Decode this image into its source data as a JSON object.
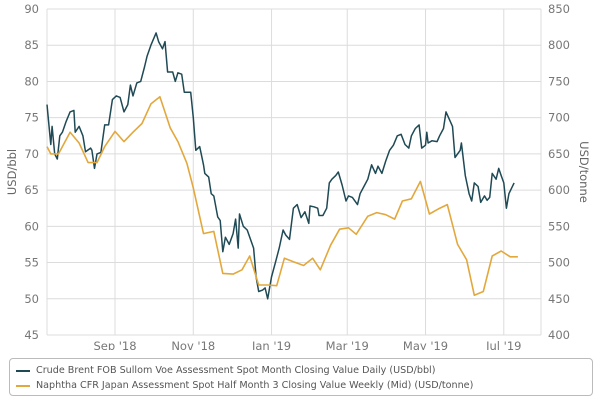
{
  "chart_data": {
    "type": "line",
    "x_unit": "days since 2018-07-10",
    "x_ticks": [
      {
        "day": 53,
        "label": "Sep '18"
      },
      {
        "day": 114,
        "label": "Nov '18"
      },
      {
        "day": 175,
        "label": "Jan '19"
      },
      {
        "day": 234,
        "label": "Mar '19"
      },
      {
        "day": 295,
        "label": "May '19"
      },
      {
        "day": 356,
        "label": "Jul '19"
      }
    ],
    "xlim": [
      0,
      385
    ],
    "y_left": {
      "label": "USD/bbl",
      "lim": [
        45,
        90
      ],
      "ticks": [
        45,
        50,
        55,
        60,
        65,
        70,
        75,
        80,
        85,
        90
      ]
    },
    "y_right": {
      "label": "USD/tonne",
      "lim": [
        400,
        850
      ],
      "ticks": [
        400,
        450,
        500,
        550,
        600,
        650,
        700,
        750,
        800,
        850
      ]
    },
    "grid": true,
    "legend_position": "bottom",
    "series": [
      {
        "name": "Crude Brent FOB Sullom Voe Assessment Spot Month Closing Value Daily (USD/bbl)",
        "axis": "left",
        "color": "#1f4a55",
        "x": [
          0,
          2,
          3,
          4,
          6,
          8,
          10,
          12,
          15,
          18,
          21,
          22,
          25,
          28,
          30,
          34,
          35,
          37,
          39,
          42,
          45,
          48,
          51,
          54,
          57,
          60,
          63,
          65,
          67,
          70,
          73,
          76,
          78,
          81,
          85,
          87,
          90,
          92,
          94,
          98,
          100,
          102,
          105,
          107,
          112,
          114,
          116,
          119,
          122,
          123,
          126,
          128,
          130,
          133,
          135,
          137,
          139,
          142,
          145,
          147,
          149,
          150,
          153,
          156,
          161,
          163,
          165,
          168,
          170,
          172,
          175,
          178,
          181,
          184,
          186,
          189,
          192,
          195,
          198,
          201,
          204,
          205,
          208,
          211,
          212,
          215,
          218,
          220,
          222,
          225,
          227,
          230,
          233,
          235,
          238,
          242,
          244,
          247,
          250,
          253,
          256,
          258,
          261,
          264,
          267,
          270,
          273,
          276,
          279,
          282,
          284,
          287,
          290,
          292,
          295,
          296,
          297,
          300,
          304,
          306,
          309,
          311,
          313,
          316,
          318,
          322,
          323,
          326,
          329,
          331,
          333,
          336,
          338,
          341,
          343,
          345,
          347,
          350,
          352,
          354,
          356,
          358,
          360,
          364
        ],
        "values": [
          76.8,
          73,
          71.3,
          73.8,
          70,
          69.3,
          72.5,
          73,
          74.5,
          75.8,
          76,
          73,
          73.8,
          72.5,
          70.3,
          70.8,
          70.5,
          68,
          70,
          70.2,
          74,
          74,
          77.5,
          78,
          77.8,
          75.8,
          76.8,
          79.5,
          78,
          79.8,
          80,
          82,
          83.5,
          85,
          86.7,
          85.5,
          84.5,
          85.5,
          81.3,
          81.3,
          80,
          81.2,
          81,
          78.5,
          78.5,
          75,
          70.5,
          71,
          68.5,
          67.3,
          66.8,
          64.5,
          64.2,
          61.3,
          60.8,
          56.5,
          58.5,
          57.5,
          59,
          61,
          57,
          61.7,
          60,
          59.5,
          57,
          53,
          51,
          51.2,
          51.5,
          50,
          53,
          55,
          57,
          59.5,
          58.8,
          58.2,
          62.5,
          63,
          61.2,
          62,
          60.4,
          62.8,
          62.7,
          62.5,
          61.5,
          61.5,
          62.5,
          66,
          66.5,
          67,
          67.5,
          65.7,
          63.5,
          64.2,
          64,
          63,
          64.5,
          65.5,
          66.5,
          68.5,
          67.3,
          68.3,
          67.3,
          69,
          70.5,
          71.2,
          72.5,
          72.7,
          71.3,
          70.8,
          72.5,
          73.5,
          74,
          70.8,
          71.2,
          73,
          71.5,
          71.8,
          71.7,
          72.5,
          73.5,
          75.8,
          75,
          73.8,
          69.5,
          70.5,
          71.5,
          67,
          64.5,
          63.5,
          66,
          65.5,
          63.3,
          64.2,
          63.6,
          64,
          67.3,
          66.5,
          68,
          67,
          66,
          62.5,
          64.5,
          66
        ]
      },
      {
        "name": "Naphtha CFR Japan Assessment Spot Half Month 3 Closing Value Weekly (Mid) (USD/tonne)",
        "axis": "right",
        "color": "#e3a83c",
        "x": [
          0,
          3,
          9,
          18,
          25,
          32,
          39,
          45,
          53,
          60,
          67,
          74,
          81,
          88,
          96,
          102,
          109,
          114,
          122,
          130,
          137,
          145,
          152,
          158,
          165,
          172,
          179,
          185,
          192,
          200,
          207,
          213,
          221,
          228,
          235,
          241,
          250,
          257,
          264,
          271,
          277,
          284,
          291,
          298,
          305,
          312,
          320,
          327,
          333,
          340,
          347,
          354,
          361,
          367
        ],
        "values": [
          660,
          650,
          650,
          680,
          665,
          638,
          638,
          660,
          681,
          667,
          680,
          692,
          719,
          729,
          686,
          667,
          637,
          603,
          540,
          543,
          485,
          484,
          490,
          509,
          469,
          469,
          468,
          506,
          501,
          496,
          506,
          490,
          524,
          546,
          548,
          539,
          564,
          569,
          566,
          560,
          585,
          588,
          612,
          567,
          574,
          580,
          525,
          504,
          455,
          460,
          509,
          516,
          508,
          508
        ]
      }
    ]
  }
}
